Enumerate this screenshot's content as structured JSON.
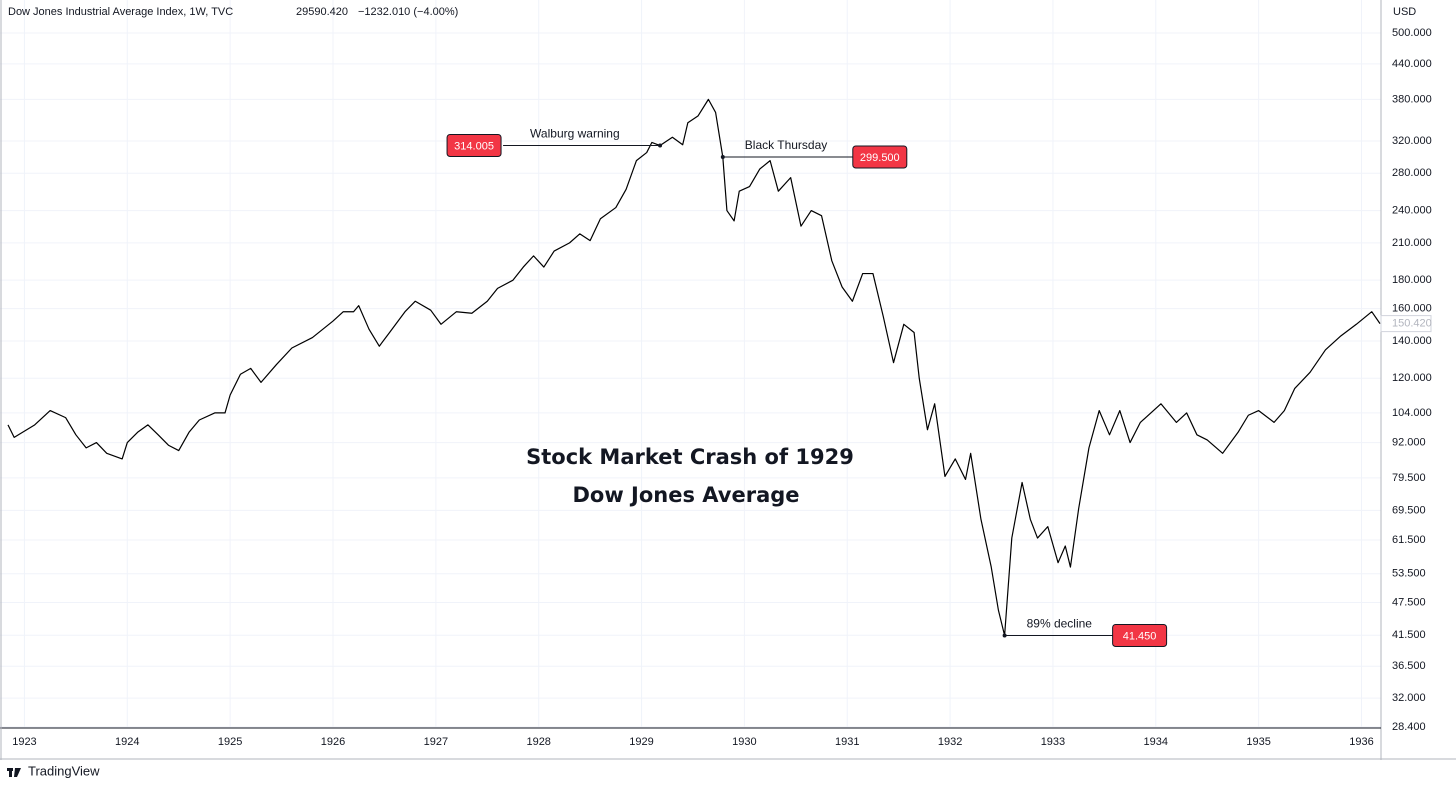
{
  "chart_data": {
    "type": "line",
    "title": "Dow Jones Industrial Average Index, 1W, TVC",
    "header_price": "29590.420",
    "header_change": "−1232.010 (−4.00%)",
    "currency": "USD",
    "annotation_title": [
      "Stock Market Crash of 1929",
      "Dow Jones Average"
    ],
    "brand": "TradingView",
    "log_scale": true,
    "grid": true,
    "color": "#000000",
    "xlim": [
      1922.84,
      1936.18
    ],
    "xticks": [
      1923,
      1924,
      1925,
      1926,
      1927,
      1928,
      1929,
      1930,
      1931,
      1932,
      1933,
      1934,
      1935,
      1936
    ],
    "ylim": [
      28.28,
      573
    ],
    "yticks": [
      {
        "value": 500,
        "label": "500.000"
      },
      {
        "value": 440,
        "label": "440.000"
      },
      {
        "value": 380,
        "label": "380.000"
      },
      {
        "value": 320,
        "label": "320.000"
      },
      {
        "value": 280,
        "label": "280.000"
      },
      {
        "value": 240,
        "label": "240.000"
      },
      {
        "value": 210,
        "label": "210.000"
      },
      {
        "value": 180,
        "label": "180.000"
      },
      {
        "value": 160,
        "label": "160.000"
      },
      {
        "value": 140,
        "label": "140.000"
      },
      {
        "value": 120,
        "label": "120.000"
      },
      {
        "value": 104,
        "label": "104.000"
      },
      {
        "value": 92,
        "label": "92.000"
      },
      {
        "value": 79.5,
        "label": "79.500"
      },
      {
        "value": 69.5,
        "label": "69.500"
      },
      {
        "value": 61.5,
        "label": "61.500"
      },
      {
        "value": 53.5,
        "label": "53.500"
      },
      {
        "value": 47.5,
        "label": "47.500"
      },
      {
        "value": 41.5,
        "label": "41.500"
      },
      {
        "value": 36.5,
        "label": "36.500"
      },
      {
        "value": 32,
        "label": "32.000"
      },
      {
        "value": 28.4,
        "label": "28.400"
      }
    ],
    "x": [
      1922.84,
      1922.9,
      1923.1,
      1923.25,
      1923.4,
      1923.5,
      1923.6,
      1923.7,
      1923.8,
      1923.95,
      1924.0,
      1924.1,
      1924.2,
      1924.3,
      1924.4,
      1924.5,
      1924.6,
      1924.7,
      1924.85,
      1924.95,
      1925.0,
      1925.1,
      1925.2,
      1925.3,
      1925.45,
      1925.6,
      1925.8,
      1926.0,
      1926.1,
      1926.2,
      1926.25,
      1926.35,
      1926.45,
      1926.55,
      1926.7,
      1926.8,
      1926.95,
      1927.05,
      1927.2,
      1927.35,
      1927.5,
      1927.6,
      1927.75,
      1927.85,
      1927.95,
      1928.05,
      1928.15,
      1928.3,
      1928.4,
      1928.5,
      1928.6,
      1928.75,
      1928.85,
      1928.95,
      1929.05,
      1929.1,
      1929.18,
      1929.3,
      1929.4,
      1929.45,
      1929.55,
      1929.65,
      1929.72,
      1929.79,
      1929.83,
      1929.9,
      1929.95,
      1930.05,
      1930.15,
      1930.25,
      1930.33,
      1930.45,
      1930.55,
      1930.65,
      1930.75,
      1930.85,
      1930.95,
      1931.05,
      1931.15,
      1931.25,
      1931.35,
      1931.45,
      1931.55,
      1931.65,
      1931.7,
      1931.78,
      1931.85,
      1931.95,
      1932.05,
      1932.15,
      1932.2,
      1932.3,
      1932.4,
      1932.47,
      1932.53,
      1932.6,
      1932.7,
      1932.78,
      1932.85,
      1932.95,
      1933.05,
      1933.12,
      1933.17,
      1933.25,
      1933.35,
      1933.45,
      1933.55,
      1933.65,
      1933.75,
      1933.85,
      1934.05,
      1934.2,
      1934.3,
      1934.4,
      1934.5,
      1934.65,
      1934.8,
      1934.9,
      1935.0,
      1935.15,
      1935.25,
      1935.35,
      1935.5,
      1935.65,
      1935.8,
      1935.95,
      1936.1,
      1936.18
    ],
    "values": [
      99,
      94,
      99,
      105,
      102,
      95,
      90,
      92,
      88,
      86,
      92,
      96,
      99,
      95,
      91,
      89,
      96,
      101,
      104,
      104,
      112,
      122,
      125,
      118,
      127,
      136,
      142,
      152,
      158,
      158,
      162,
      147,
      137,
      145,
      158,
      165,
      159,
      150,
      158,
      157,
      165,
      174,
      180,
      190,
      199,
      190,
      203,
      210,
      218,
      212,
      232,
      243,
      262,
      295,
      305,
      318,
      314.005,
      325,
      315,
      345,
      355,
      380,
      360,
      299.5,
      240,
      230,
      260,
      265,
      285,
      295,
      260,
      275,
      225,
      240,
      235,
      195,
      175,
      165,
      185,
      185,
      155,
      128,
      150,
      145,
      120,
      97,
      108,
      80,
      86,
      79,
      88,
      67,
      55,
      46,
      41.45,
      62,
      78,
      67,
      62,
      65,
      56,
      60,
      55,
      70,
      90,
      105,
      95,
      105,
      92,
      100,
      108,
      100,
      104,
      95,
      93,
      88,
      96,
      103,
      105,
      100,
      105,
      115,
      123,
      135,
      143,
      150,
      158,
      150.42
    ],
    "last_price": {
      "value": 150.42,
      "label": "150.420"
    },
    "annotations": [
      {
        "text": "Walburg warning",
        "x": 1929.18,
        "value": 314.005
      },
      {
        "text": "Black Thursday",
        "x": 1929.79,
        "value": 299.5,
        "value_label": "299.500"
      },
      {
        "text": "89% decline",
        "x": 1932.53,
        "value": 41.45,
        "value_label": "41.450"
      }
    ]
  }
}
